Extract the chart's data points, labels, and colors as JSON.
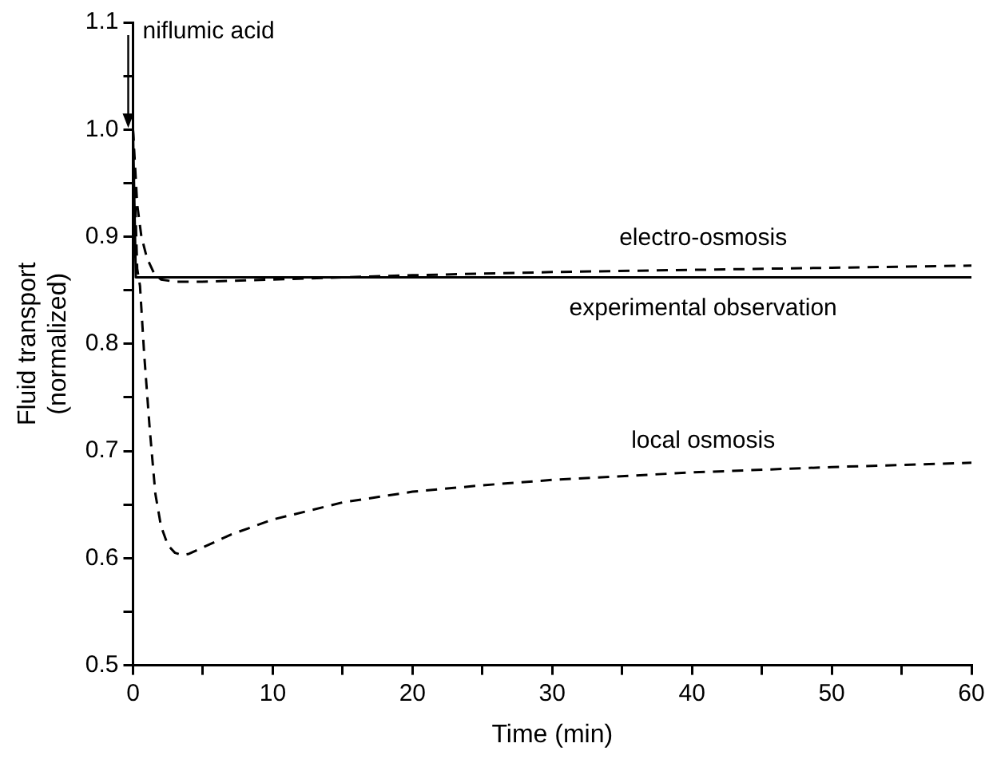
{
  "chart_data": {
    "type": "line",
    "xlabel": "Time (min)",
    "ylabel": "Fluid transport\n(normalized)",
    "xlim": [
      0,
      60
    ],
    "xticks": [
      0,
      {
        "value": 5,
        "label": null
      },
      10,
      {
        "value": 15,
        "label": null
      },
      20,
      {
        "value": 25,
        "label": null
      },
      30,
      {
        "value": 35,
        "label": null
      },
      40,
      {
        "value": 45,
        "label": null
      },
      50,
      {
        "value": 55,
        "label": null
      },
      60
    ],
    "ylim": [
      0.5,
      1.1
    ],
    "yticks": [
      0.5,
      {
        "value": 0.55,
        "label": null
      },
      0.6,
      {
        "value": 0.65,
        "label": null
      },
      0.7,
      {
        "value": 0.75,
        "label": null
      },
      0.8,
      {
        "value": 0.85,
        "label": null
      },
      0.9,
      {
        "value": 0.95,
        "label": null
      },
      {
        "value": 1.0,
        "label": "1.0"
      },
      {
        "value": 1.05,
        "label": null
      },
      1.1
    ],
    "grid": false,
    "legend": false,
    "marker": "none",
    "annotations": [
      {
        "text": "niflumic acid",
        "x": 0,
        "y": 1.0
      }
    ],
    "series": [
      {
        "name": "experimental observation",
        "color": "#000000",
        "line_style": "solid",
        "x": [
          0,
          0.2,
          60
        ],
        "values": [
          1.0,
          0.862,
          0.862
        ]
      },
      {
        "name": "electro-osmosis",
        "color": "#000000",
        "line_style": "dashed",
        "x": [
          0,
          0.3,
          0.6,
          1,
          1.5,
          2,
          3,
          5,
          10,
          20,
          30,
          40,
          50,
          60
        ],
        "values": [
          1.0,
          0.93,
          0.9,
          0.88,
          0.866,
          0.86,
          0.858,
          0.858,
          0.86,
          0.864,
          0.867,
          0.869,
          0.871,
          0.873
        ]
      },
      {
        "name": "local osmosis",
        "color": "#000000",
        "line_style": "dashed",
        "x": [
          0,
          0.3,
          0.5,
          0.8,
          1.2,
          1.6,
          2,
          2.5,
          3,
          3.5,
          4,
          5,
          7,
          10,
          15,
          20,
          25,
          30,
          40,
          50,
          60
        ],
        "values": [
          1.0,
          0.87,
          0.854,
          0.79,
          0.72,
          0.66,
          0.63,
          0.612,
          0.605,
          0.603,
          0.604,
          0.61,
          0.622,
          0.636,
          0.652,
          0.662,
          0.668,
          0.673,
          0.68,
          0.685,
          0.689
        ]
      }
    ]
  }
}
